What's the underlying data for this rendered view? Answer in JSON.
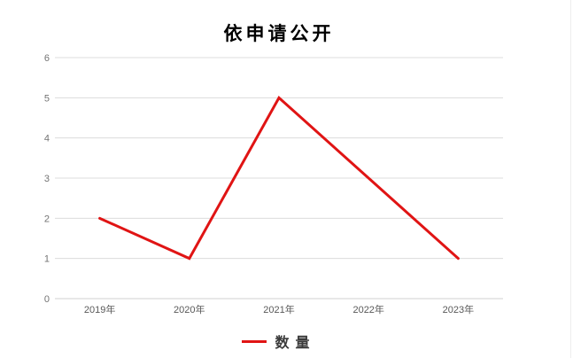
{
  "window": {
    "background": "#ffffff",
    "right_edge_border": "#ededed"
  },
  "chart_data": {
    "type": "line",
    "title": "依申请公开",
    "categories": [
      "2019年",
      "2020年",
      "2021年",
      "2022年",
      "2023年"
    ],
    "series": [
      {
        "name": "数量",
        "values": [
          2,
          1,
          5,
          3,
          1
        ],
        "color": "#e01414"
      }
    ],
    "ylim": [
      0,
      6
    ],
    "yticks": [
      0,
      1,
      2,
      3,
      4,
      5,
      6
    ],
    "grid": true,
    "legend_position": "bottom",
    "styles": {
      "gridline_color": "#dcdcdc",
      "axis_line_color": "#d0d0d0",
      "y_tick_label_color": "#737373",
      "x_tick_label_color": "#595959",
      "title_color": "#000000",
      "line_width": 3
    }
  }
}
